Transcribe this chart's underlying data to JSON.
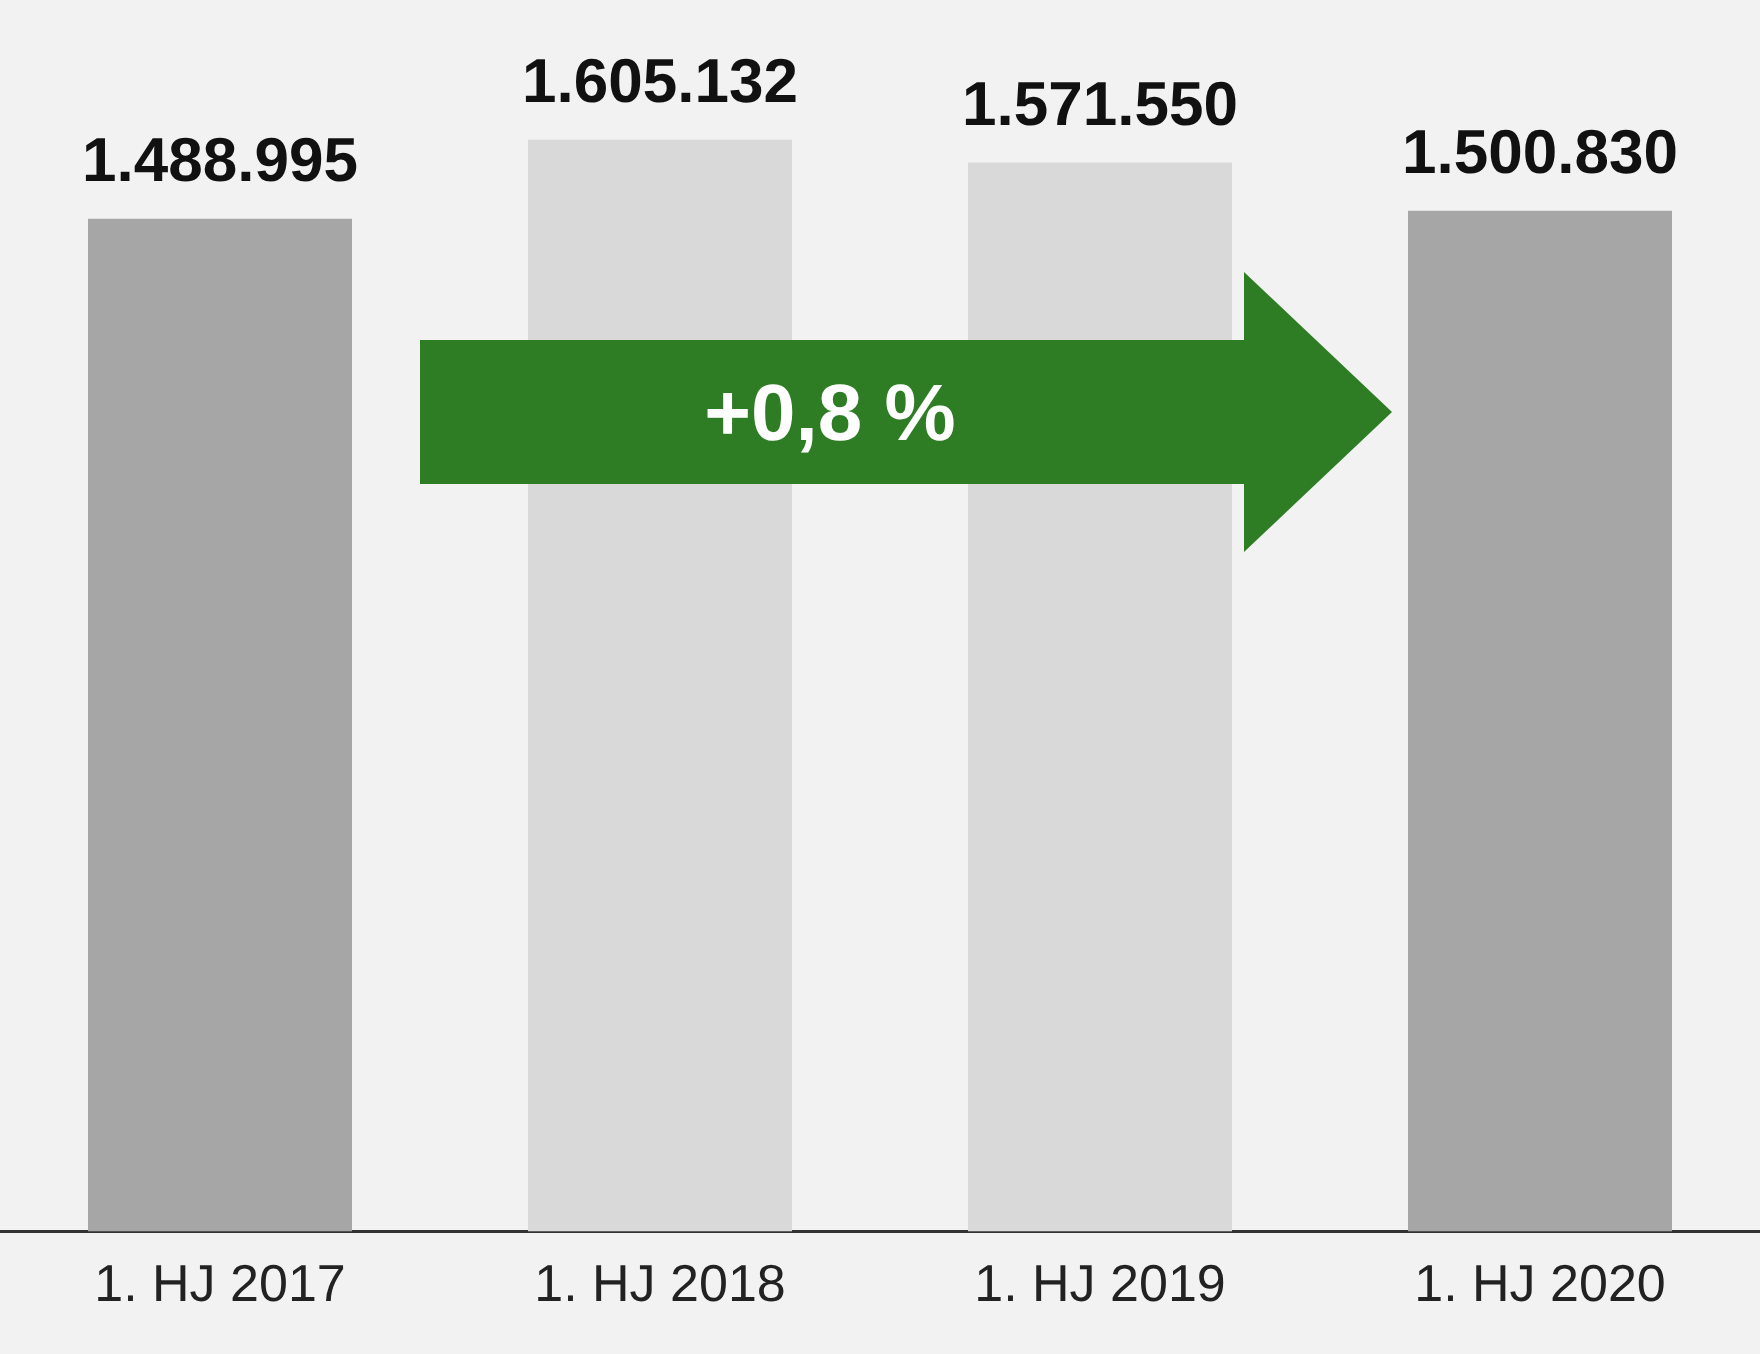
{
  "chart_data": {
    "type": "bar",
    "categories": [
      "1. HJ 2017",
      "1. HJ 2018",
      "1. HJ 2019",
      "1. HJ 2020"
    ],
    "values": [
      1488995,
      1605132,
      1571550,
      1500830
    ],
    "colors": [
      "#a6a6a6",
      "#d9d9d9",
      "#d9d9d9",
      "#a6a6a6"
    ],
    "value_labels": [
      "1.488.995",
      "1.605.132",
      "1.571.550",
      "1.500.830"
    ],
    "grid": false,
    "legend": false,
    "annotations": [
      "+0,8 %"
    ]
  }
}
